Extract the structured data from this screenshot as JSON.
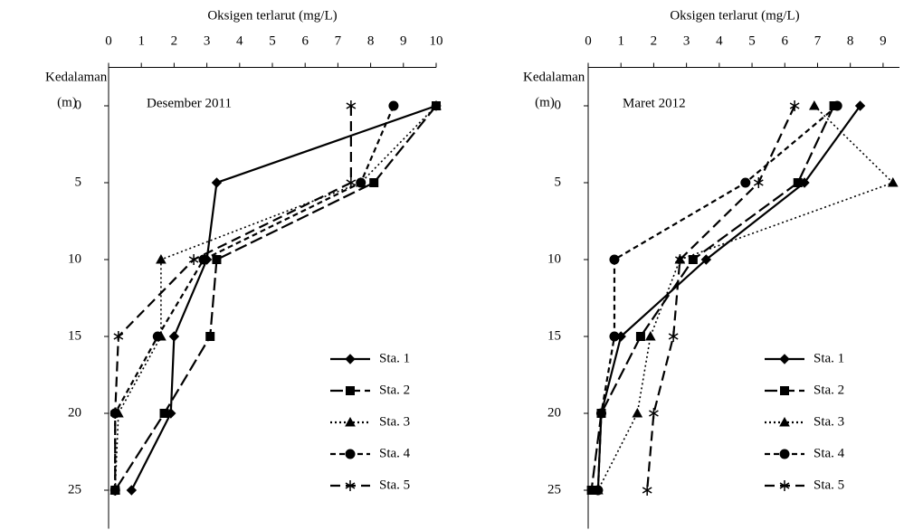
{
  "chart_data": [
    {
      "type": "line",
      "title": "Desember 2011",
      "x_label": "Oksigen terlarut (mg/L)",
      "y_label": [
        "Kedalaman",
        "(m)"
      ],
      "y": [
        0,
        5,
        10,
        15,
        20,
        25
      ],
      "xlim": [
        0,
        10
      ],
      "xticks": [
        0,
        1,
        2,
        3,
        4,
        5,
        6,
        7,
        8,
        9,
        10
      ],
      "ylim": [
        -2.5,
        27.5
      ],
      "yticks": [
        0,
        5,
        10,
        15,
        20,
        25
      ],
      "y_inverted": true,
      "x_axis_position": "top",
      "legend": "lower right",
      "series": [
        {
          "name": "Sta. 1",
          "color": "#000000",
          "marker": "diamond",
          "line_style": "solid",
          "values": [
            10,
            3.3,
            3.0,
            2.0,
            1.9,
            0.7
          ]
        },
        {
          "name": "Sta. 2",
          "color": "#000000",
          "marker": "square",
          "line_style": "long-dash",
          "values": [
            10,
            8.1,
            3.3,
            3.1,
            1.7,
            0.2
          ]
        },
        {
          "name": "Sta. 3",
          "color": "#000000",
          "marker": "triangle",
          "line_style": "dotted",
          "values": [
            10,
            7.7,
            1.6,
            1.6,
            0.3,
            0.2
          ]
        },
        {
          "name": "Sta. 4",
          "color": "#000000",
          "marker": "circle",
          "line_style": "short-dash",
          "values": [
            8.7,
            7.7,
            2.9,
            1.5,
            0.2,
            0.2
          ]
        },
        {
          "name": "Sta. 5",
          "color": "#000000",
          "marker": "asterisk",
          "line_style": "dash",
          "values": [
            7.4,
            7.4,
            2.6,
            0.3,
            0.2,
            0.2
          ]
        }
      ]
    },
    {
      "type": "line",
      "title": "Maret 2012",
      "x_label": "Oksigen terlarut (mg/L)",
      "y_label": [
        "Kedalaman",
        "(m)"
      ],
      "y": [
        0,
        5,
        10,
        15,
        20,
        25
      ],
      "xlim": [
        0,
        9.5
      ],
      "xticks": [
        0,
        1,
        2,
        3,
        4,
        5,
        6,
        7,
        8,
        9
      ],
      "ylim": [
        -2.5,
        27.5
      ],
      "yticks": [
        0,
        5,
        10,
        15,
        20,
        25
      ],
      "y_inverted": true,
      "x_axis_position": "top",
      "legend": "lower right",
      "series": [
        {
          "name": "Sta. 1",
          "color": "#000000",
          "marker": "diamond",
          "line_style": "solid",
          "values": [
            8.3,
            6.6,
            3.6,
            1.0,
            0.4,
            0.3
          ]
        },
        {
          "name": "Sta. 2",
          "color": "#000000",
          "marker": "square",
          "line_style": "long-dash",
          "values": [
            7.5,
            6.4,
            3.2,
            1.6,
            0.4,
            0.1
          ]
        },
        {
          "name": "Sta. 3",
          "color": "#000000",
          "marker": "triangle",
          "line_style": "dotted",
          "values": [
            6.9,
            9.3,
            2.8,
            1.9,
            1.5,
            0.3
          ]
        },
        {
          "name": "Sta. 4",
          "color": "#000000",
          "marker": "circle",
          "line_style": "short-dash",
          "values": [
            7.6,
            4.8,
            0.8,
            0.8,
            0.4,
            0.3
          ]
        },
        {
          "name": "Sta. 5",
          "color": "#000000",
          "marker": "asterisk",
          "line_style": "dash",
          "values": [
            6.3,
            5.2,
            2.8,
            2.6,
            2.0,
            1.8
          ]
        }
      ]
    }
  ]
}
